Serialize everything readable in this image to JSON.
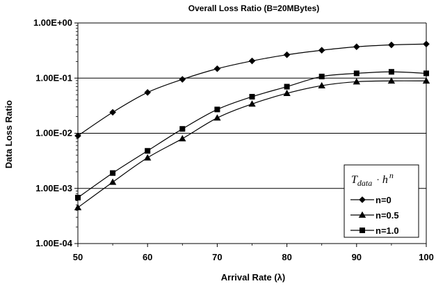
{
  "chart_data": {
    "type": "line",
    "title": "Overall Loss Ratio (B=20MBytes)",
    "xlabel": "Arrival Rate (λ)",
    "ylabel": "Data Loss Ratio",
    "x": [
      50,
      55,
      60,
      65,
      70,
      75,
      80,
      85,
      90,
      95,
      100
    ],
    "xlim": [
      50,
      100
    ],
    "xticks": [
      "50",
      "60",
      "70",
      "80",
      "90",
      "100"
    ],
    "xtick_values": [
      50,
      60,
      70,
      80,
      90,
      100
    ],
    "yscale": "log",
    "ylim": [
      0.0001,
      1
    ],
    "yticks": [
      "1.00E-04",
      "1.00E-03",
      "1.00E-02",
      "1.00E-01",
      "1.00E+00"
    ],
    "ytick_values": [
      0.0001,
      0.001,
      0.01,
      0.1,
      1
    ],
    "grid": "horizontal",
    "legend_position": "bottom-right",
    "legend_title": {
      "base": "T",
      "sub": "data",
      "op": "·",
      "h": "h",
      "sup": "n"
    },
    "series": [
      {
        "name": "n=0",
        "marker": "diamond",
        "values": [
          0.009,
          0.024,
          0.055,
          0.095,
          0.148,
          0.205,
          0.265,
          0.32,
          0.37,
          0.4,
          0.415
        ]
      },
      {
        "name": "n=0.5",
        "marker": "triangle",
        "values": [
          0.00045,
          0.0013,
          0.0036,
          0.008,
          0.019,
          0.034,
          0.053,
          0.073,
          0.086,
          0.089,
          0.089
        ]
      },
      {
        "name": "n=1.0",
        "marker": "square",
        "values": [
          0.00068,
          0.0019,
          0.0048,
          0.012,
          0.027,
          0.046,
          0.07,
          0.107,
          0.122,
          0.13,
          0.122
        ]
      }
    ],
    "colors": {
      "line": "#000000",
      "grid": "#000000",
      "background": "#ffffff"
    }
  }
}
